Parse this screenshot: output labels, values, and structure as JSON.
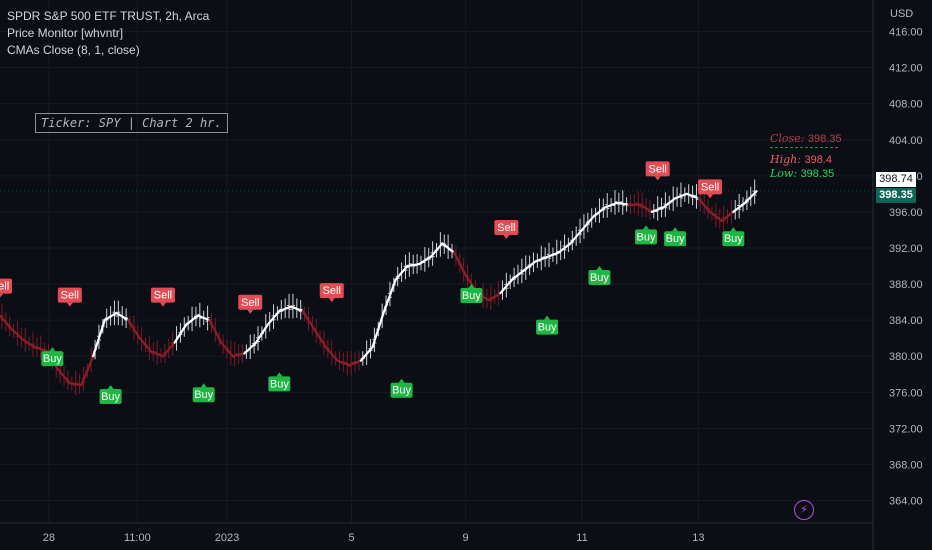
{
  "legend": {
    "symbol": "SPDR S&P 500 ETF TRUST, 2h, Arca",
    "indicator1": "Price Monitor [whvntr]",
    "indicator2": "CMAs Close (8, 1, close)"
  },
  "ticker_box": "Ticker: SPY | Chart 2 hr.",
  "info": {
    "close_label": "Close:",
    "close_value": "398.35",
    "high_label": "High:",
    "high_value": "398.4",
    "low_label": "Low:",
    "low_value": "398.35"
  },
  "price_tags": {
    "last": "398.74",
    "current": "398.35"
  },
  "axis": {
    "currency": "USD"
  },
  "colors": {
    "background": "#0c0e15",
    "up": "#ffffff",
    "down": "#8b1e2b",
    "sell": "#e04d54",
    "buy": "#1fb743",
    "close_text": "#b3414a",
    "high_text": "#f05a64",
    "low_text": "#22d65f",
    "current_tag": "#0e6656"
  },
  "chart_data": {
    "type": "line",
    "y_ticks": [
      "416.00",
      "412.00",
      "408.00",
      "404.00",
      "400.00",
      "396.00",
      "392.00",
      "388.00",
      "384.00",
      "380.00",
      "376.00",
      "372.00",
      "368.00",
      "364.00"
    ],
    "ylim": [
      361.5,
      419.5
    ],
    "x_tick_labels": [
      {
        "label": "28",
        "x": 4.2
      },
      {
        "label": "11:00",
        "x": 11.8
      },
      {
        "label": "2023",
        "x": 19.5
      },
      {
        "label": "5",
        "x": 30.2
      },
      {
        "label": "9",
        "x": 40.0
      },
      {
        "label": "11",
        "x": 50.0
      },
      {
        "label": "13",
        "x": 60.0
      }
    ],
    "xlim": [
      0,
      75
    ],
    "series": [
      {
        "x": [
          0,
          1,
          2,
          3,
          4,
          5,
          6,
          7,
          8,
          9,
          10,
          11,
          12,
          13,
          14,
          15,
          16,
          17,
          18,
          19,
          20,
          21,
          22,
          23,
          24,
          25,
          26,
          27,
          28,
          29,
          30,
          31,
          32,
          33,
          34,
          35,
          36,
          37,
          38,
          39,
          40,
          41,
          42,
          43,
          44,
          45,
          46,
          47,
          48,
          49,
          50,
          51,
          52,
          53,
          54,
          55,
          56,
          57,
          58,
          59,
          60,
          61,
          62,
          63,
          64,
          65
        ],
        "values": [
          384.5,
          383.0,
          381.8,
          381.0,
          380.6,
          378.5,
          377.0,
          376.8,
          380.0,
          384.0,
          384.8,
          384.0,
          382.0,
          380.5,
          380.0,
          381.5,
          383.5,
          384.5,
          384.0,
          381.5,
          380.0,
          380.3,
          381.5,
          383.5,
          385.0,
          385.5,
          385.0,
          383.0,
          381.0,
          379.5,
          379.0,
          379.5,
          381.0,
          385.0,
          388.5,
          390.0,
          390.2,
          391.0,
          392.5,
          391.5,
          389.0,
          387.0,
          386.2,
          387.0,
          388.5,
          389.5,
          390.5,
          391.0,
          391.5,
          392.5,
          394.0,
          395.5,
          396.5,
          397.0,
          396.8,
          396.8,
          396.0,
          396.5,
          397.5,
          398.0,
          397.5,
          396.0,
          395.0,
          396.0,
          397.0,
          398.3
        ],
        "segment_colors": [
          "d",
          "d",
          "d",
          "d",
          "d",
          "d",
          "d",
          "d",
          "u",
          "u",
          "u",
          "d",
          "d",
          "d",
          "d",
          "u",
          "u",
          "u",
          "d",
          "d",
          "d",
          "u",
          "u",
          "u",
          "u",
          "u",
          "d",
          "d",
          "d",
          "d",
          "d",
          "u",
          "u",
          "u",
          "u",
          "u",
          "u",
          "u",
          "u",
          "d",
          "d",
          "d",
          "d",
          "u",
          "u",
          "u",
          "u",
          "u",
          "u",
          "u",
          "u",
          "u",
          "u",
          "u",
          "d",
          "d",
          "u",
          "u",
          "u",
          "u",
          "d",
          "d",
          "d",
          "u",
          "u",
          "u"
        ]
      }
    ],
    "signals": [
      {
        "type": "Sell",
        "x": 0.0,
        "price": 386.5
      },
      {
        "type": "Sell",
        "x": 6.0,
        "price": 385.5
      },
      {
        "type": "Buy",
        "x": 4.5,
        "price": 381.0
      },
      {
        "type": "Buy",
        "x": 9.5,
        "price": 376.8
      },
      {
        "type": "Sell",
        "x": 14.0,
        "price": 385.5
      },
      {
        "type": "Buy",
        "x": 17.5,
        "price": 377.0
      },
      {
        "type": "Sell",
        "x": 21.5,
        "price": 384.7
      },
      {
        "type": "Buy",
        "x": 24.0,
        "price": 378.2
      },
      {
        "type": "Sell",
        "x": 28.5,
        "price": 386.0
      },
      {
        "type": "Buy",
        "x": 34.5,
        "price": 377.5
      },
      {
        "type": "Sell",
        "x": 43.5,
        "price": 393.0
      },
      {
        "type": "Buy",
        "x": 40.5,
        "price": 388.0
      },
      {
        "type": "Buy",
        "x": 47.0,
        "price": 384.5
      },
      {
        "type": "Buy",
        "x": 51.5,
        "price": 390.0
      },
      {
        "type": "Sell",
        "x": 56.5,
        "price": 399.5
      },
      {
        "type": "Buy",
        "x": 55.5,
        "price": 394.5
      },
      {
        "type": "Buy",
        "x": 58.0,
        "price": 394.3
      },
      {
        "type": "Sell",
        "x": 61.0,
        "price": 397.5
      },
      {
        "type": "Buy",
        "x": 63.0,
        "price": 394.3
      }
    ],
    "last_close": 398.35,
    "prev_close": 398.74,
    "grid": true
  }
}
